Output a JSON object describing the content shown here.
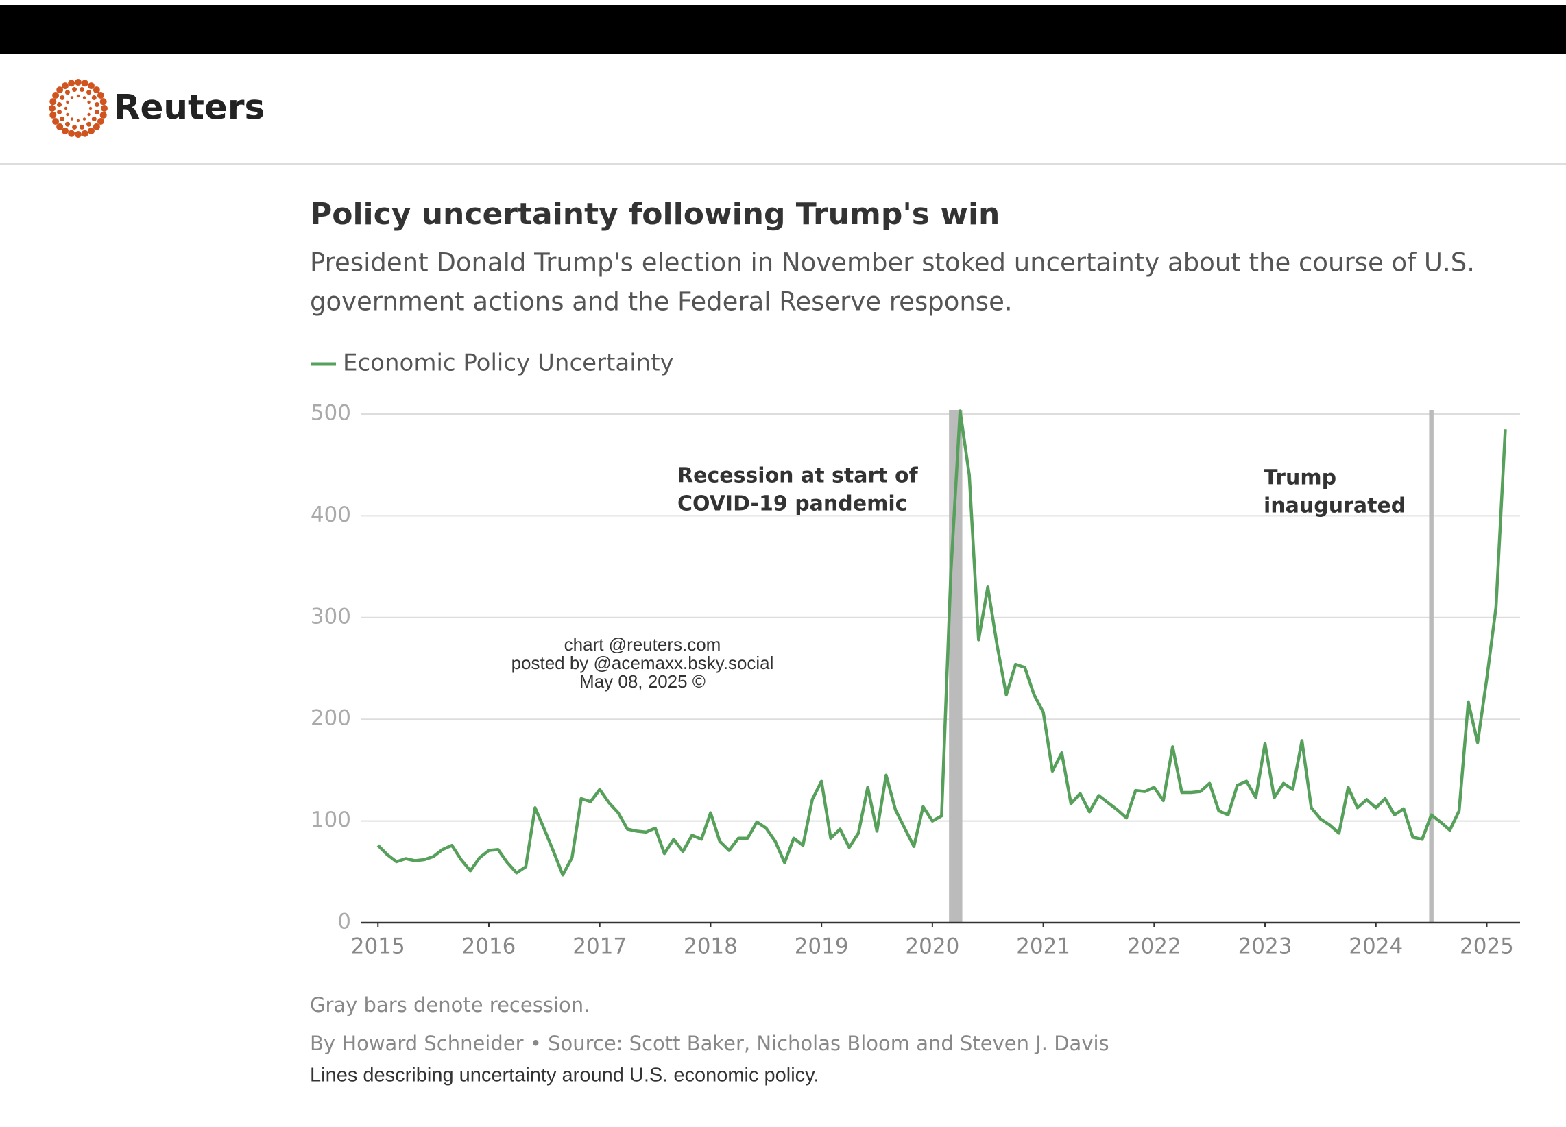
{
  "header": {
    "brand": "Reuters"
  },
  "chart_data": {
    "type": "line",
    "title": "Policy uncertainty following Trump's win",
    "subtitle": [
      "President Donald Trump's election in November stoked uncertainty about the course of U.S.",
      "government actions and the Federal Reserve response."
    ],
    "annotations": [
      {
        "lines": [
          "Recession at start of",
          "COVID-19 pandemic"
        ]
      },
      {
        "lines": [
          "Trump",
          "inaugurated"
        ]
      }
    ],
    "watermark": [
      "chart @reuters.com",
      "posted by @acemaxx.bsky.social",
      "May 08, 2025 ©"
    ],
    "shaded_regions": [
      {
        "start": 2020.15,
        "end": 2020.27
      },
      {
        "start": 2024.48,
        "end": 2024.52
      }
    ],
    "x": [
      2015,
      2015.083,
      2015.167,
      2015.25,
      2015.333,
      2015.417,
      2015.5,
      2015.583,
      2015.667,
      2015.75,
      2015.833,
      2015.917,
      2016,
      2016.083,
      2016.167,
      2016.25,
      2016.333,
      2016.417,
      2016.5,
      2016.583,
      2016.667,
      2016.75,
      2016.833,
      2016.917,
      2017,
      2017.083,
      2017.167,
      2017.25,
      2017.333,
      2017.417,
      2017.5,
      2017.583,
      2017.667,
      2017.75,
      2017.833,
      2017.917,
      2018,
      2018.083,
      2018.167,
      2018.25,
      2018.333,
      2018.417,
      2018.5,
      2018.583,
      2018.667,
      2018.75,
      2018.833,
      2018.917,
      2019,
      2019.083,
      2019.167,
      2019.25,
      2019.333,
      2019.417,
      2019.5,
      2019.583,
      2019.667,
      2019.75,
      2019.833,
      2019.917,
      2020,
      2020.083,
      2020.167,
      2020.25,
      2020.333,
      2020.417,
      2020.5,
      2020.583,
      2020.667,
      2020.75,
      2020.833,
      2020.917,
      2021,
      2021.083,
      2021.167,
      2021.25,
      2021.333,
      2021.417,
      2021.5,
      2021.583,
      2021.667,
      2021.75,
      2021.833,
      2021.917,
      2022,
      2022.083,
      2022.167,
      2022.25,
      2022.333,
      2022.417,
      2022.5,
      2022.583,
      2022.667,
      2022.75,
      2022.833,
      2022.917,
      2023,
      2023.083,
      2023.167,
      2023.25,
      2023.333,
      2023.417,
      2023.5,
      2023.583,
      2023.667,
      2023.75,
      2023.833,
      2023.917,
      2024,
      2024.083,
      2024.167,
      2024.25,
      2024.333,
      2024.417,
      2024.5,
      2024.583,
      2024.667,
      2024.75,
      2024.833,
      2024.917,
      2025,
      2025.083,
      2025.167
    ],
    "series": [
      {
        "name": "Economic Policy Uncertainty",
        "color": "#56a05b",
        "values": [
          76,
          67,
          60,
          63,
          61,
          62,
          65,
          72,
          76,
          62,
          51,
          64,
          71,
          72,
          59,
          49,
          55,
          113,
          92,
          70,
          47,
          64,
          122,
          119,
          131,
          118,
          108,
          92,
          90,
          89,
          93,
          68,
          82,
          70,
          86,
          82,
          108,
          80,
          71,
          83,
          83,
          99,
          93,
          80,
          59,
          83,
          76,
          121,
          139,
          83,
          92,
          74,
          88,
          133,
          90,
          145,
          111,
          93,
          75,
          114,
          100,
          105,
          345,
          503,
          440,
          278,
          330,
          273,
          224,
          254,
          251,
          224,
          207,
          149,
          167,
          117,
          127,
          109,
          125,
          118,
          111,
          103,
          130,
          129,
          133,
          120,
          173,
          128,
          128,
          129,
          137,
          110,
          106,
          135,
          139,
          123,
          176,
          123,
          137,
          131,
          179,
          113,
          102,
          96,
          88,
          133,
          113,
          121,
          113,
          122,
          106,
          112,
          84,
          82,
          106,
          99,
          91,
          110,
          217,
          177,
          240,
          310,
          485
        ]
      }
    ],
    "xlim": [
      2014.85,
      2025.3
    ],
    "xticks": [
      2015,
      2016,
      2017,
      2018,
      2019,
      2020,
      2021,
      2022,
      2023,
      2024,
      2025
    ],
    "ylim": [
      0,
      500
    ],
    "yticks": [
      0,
      100,
      200,
      300,
      400,
      500
    ],
    "grid": true,
    "notes": [
      "Gray bars denote recession.",
      "By Howard Schneider • Source: Scott Baker, Nicholas Bloom and Steven J. Davis",
      "Lines describing uncertainty around U.S. economic policy."
    ]
  }
}
